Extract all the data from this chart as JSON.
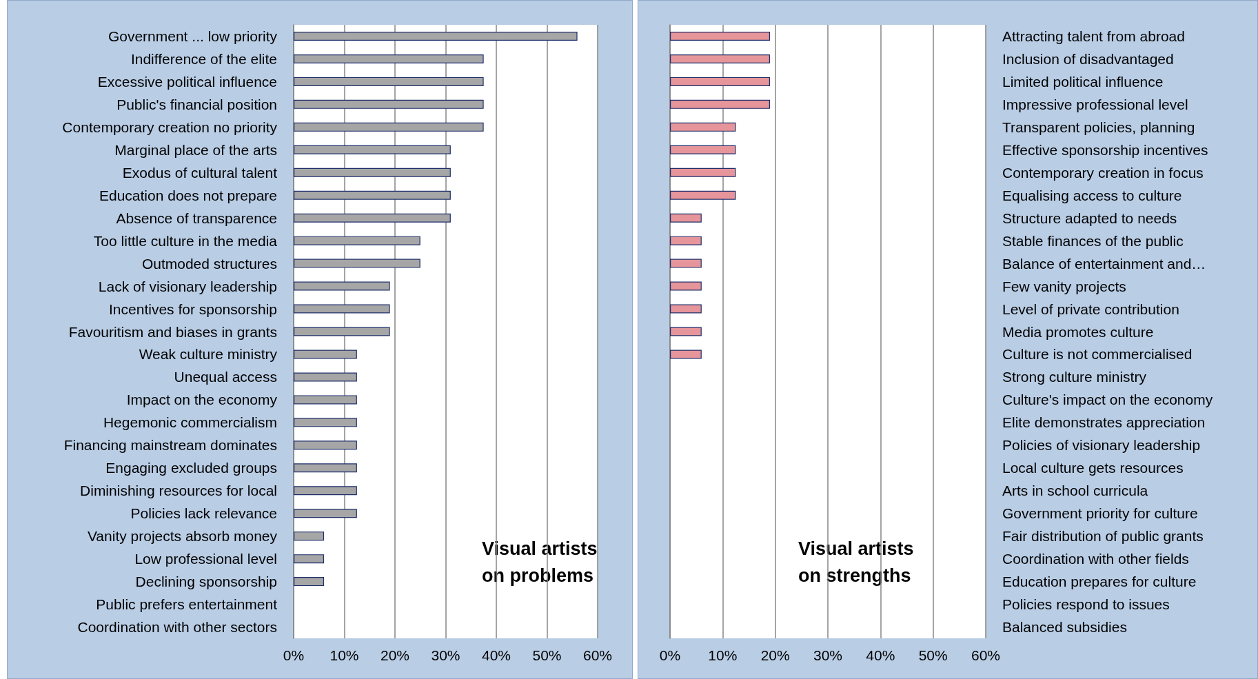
{
  "chart_data": [
    {
      "type": "bar",
      "orientation": "horizontal",
      "annotations": [
        "Visual artists\non problems"
      ],
      "categories": [
        "Government ... low priority",
        "Indifference of the elite",
        "Excessive political influence",
        "Public's financial position",
        "Contemporary creation no priority",
        "Marginal place of the arts",
        "Exodus of cultural talent",
        "Education does not prepare",
        "Absence of transparence",
        "Too little culture in the media",
        "Outmoded structures",
        "Lack of visionary leadership",
        "Incentives for sponsorship",
        "Favouritism and biases in grants",
        "Weak culture ministry",
        "Unequal access",
        "Impact on the economy",
        "Hegemonic commercialism",
        "Financing mainstream dominates",
        "Engaging excluded groups",
        "Diminishing resources for local",
        "Policies lack relevance",
        "Vanity projects absorb money",
        "Low professional level",
        "Declining sponsorship",
        "Public prefers entertainment",
        "Coordination with other sectors"
      ],
      "values": [
        56,
        37.5,
        37.5,
        37.5,
        37.5,
        31,
        31,
        31,
        31,
        25,
        25,
        19,
        19,
        19,
        12.5,
        12.5,
        12.5,
        12.5,
        12.5,
        12.5,
        12.5,
        12.5,
        6,
        6,
        6,
        0,
        0
      ],
      "color": "#a6a6a6",
      "xlim": [
        0,
        60
      ],
      "xticks": [
        {
          "value": 0,
          "label": "0%"
        },
        {
          "value": 10,
          "label": "10%"
        },
        {
          "value": 20,
          "label": "20%"
        },
        {
          "value": 30,
          "label": "30%"
        },
        {
          "value": 40,
          "label": "40%"
        },
        {
          "value": 50,
          "label": "50%"
        },
        {
          "value": 60,
          "label": "60%"
        }
      ],
      "grid": "x"
    },
    {
      "type": "bar",
      "orientation": "horizontal",
      "annotations": [
        "Visual artists\non strengths"
      ],
      "categories": [
        "Attracting talent from abroad",
        "Inclusion of disadvantaged",
        "Limited political influence",
        "Impressive professional level",
        "Transparent policies, planning",
        "Effective sponsorship incentives",
        "Contemporary creation in focus",
        "Equalising access to culture",
        "Structure adapted to needs",
        "Stable finances of the public",
        "Balance of entertainment and…",
        "Few vanity projects",
        "Level of private contribution",
        "Media promotes culture",
        "Culture is not commercialised",
        "Strong culture ministry",
        "Culture's impact on the economy",
        "Elite demonstrates appreciation",
        "Policies of visionary leadership",
        "Local culture gets resources",
        "Arts in school curricula",
        "Government priority for culture",
        "Fair distribution of public grants",
        "Coordination with other fields",
        "Education prepares for culture",
        "Policies respond to issues",
        "Balanced subsidies"
      ],
      "values": [
        19,
        19,
        19,
        19,
        12.5,
        12.5,
        12.5,
        12.5,
        6,
        6,
        6,
        6,
        6,
        6,
        6,
        0,
        0,
        0,
        0,
        0,
        0,
        0,
        0,
        0,
        0,
        0,
        0
      ],
      "color": "#e6959a",
      "xlim": [
        0,
        60
      ],
      "xticks": [
        {
          "value": 0,
          "label": "0%"
        },
        {
          "value": 10,
          "label": "10%"
        },
        {
          "value": 20,
          "label": "20%"
        },
        {
          "value": 30,
          "label": "30%"
        },
        {
          "value": 40,
          "label": "40%"
        },
        {
          "value": 50,
          "label": "50%"
        },
        {
          "value": 60,
          "label": "60%"
        }
      ],
      "grid": "x"
    }
  ]
}
